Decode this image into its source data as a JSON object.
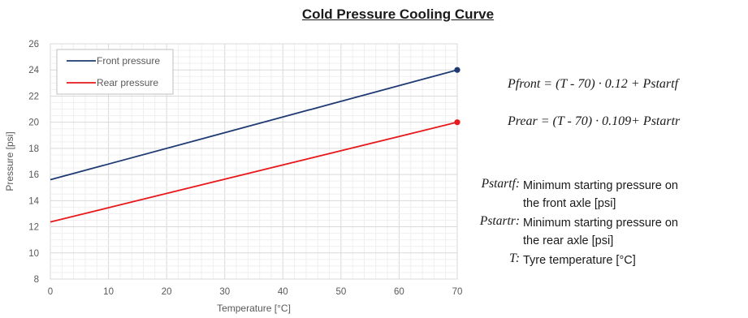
{
  "chart_data": {
    "type": "line",
    "title": "Cold Pressure Cooling Curve",
    "xlabel": "Temperature [°C]",
    "ylabel": "Pressure [psi]",
    "xlim": [
      0,
      70
    ],
    "ylim": [
      8,
      26
    ],
    "x_ticks": [
      "0",
      "10",
      "20",
      "30",
      "40",
      "50",
      "60",
      "70"
    ],
    "y_ticks": [
      "8",
      "10",
      "12",
      "14",
      "16",
      "18",
      "20",
      "22",
      "24",
      "26"
    ],
    "grid": true,
    "legend_position": "top-left",
    "series": [
      {
        "name": "Front pressure",
        "color": "#1f3a73",
        "x": [
          0,
          70
        ],
        "y": [
          15.6,
          24.0
        ],
        "end_marker": true
      },
      {
        "name": "Rear pressure",
        "color": "#e8191c",
        "x": [
          0,
          70
        ],
        "y": [
          12.37,
          20.0
        ],
        "end_marker": true
      }
    ]
  },
  "formulas": {
    "front": "Pfront = (T - 70) · 0.12 + Pstartf",
    "rear": "Prear = (T - 70) · 0.109+ Pstartr"
  },
  "definitions": [
    {
      "key": "Pstartf:",
      "desc": "Minimum starting pressure on the front axle [psi]",
      "line1": "Minimum starting pressure on",
      "line2": "the front axle [psi]"
    },
    {
      "key": "Pstartr:",
      "desc": "Minimum starting pressure on the rear axle [psi]",
      "line1": "Minimum starting pressure on",
      "line2": "the rear axle [psi]"
    },
    {
      "key": "T:",
      "desc": "Tyre temperature [°C]",
      "line1": "Tyre temperature [°C]",
      "line2": ""
    }
  ]
}
